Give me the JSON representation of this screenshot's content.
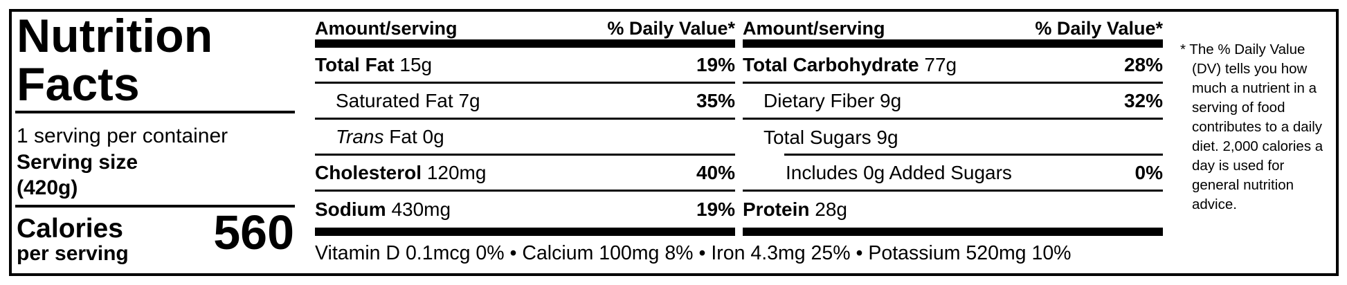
{
  "colors": {
    "ink": "#000000",
    "background": "#ffffff"
  },
  "label": {
    "title_line1": "Nutrition",
    "title_line2": "Facts",
    "servings_per_container": "1 serving per container",
    "serving_size_label": "Serving size",
    "serving_size_value": "(420g)",
    "calories_label": "Calories",
    "calories_sublabel": "per serving",
    "calories_value": "560"
  },
  "columns": [
    {
      "amount_header": "Amount/serving",
      "dv_header": "% Daily Value*",
      "rows": [
        {
          "name": "Total Fat",
          "amount": "15g",
          "dv": "19%"
        },
        {
          "name": "Saturated Fat",
          "amount": "7g",
          "dv": "35%"
        },
        {
          "name_italic": "Trans",
          "name": "Fat",
          "amount": "0g",
          "dv": ""
        },
        {
          "name": "Cholesterol",
          "amount": "120mg",
          "dv": "40%"
        },
        {
          "name": "Sodium",
          "amount": "430mg",
          "dv": "19%"
        }
      ]
    },
    {
      "amount_header": "Amount/serving",
      "dv_header": "% Daily Value*",
      "rows": [
        {
          "name": "Total Carbohydrate",
          "amount": "77g",
          "dv": "28%"
        },
        {
          "name": "Dietary Fiber",
          "amount": "9g",
          "dv": "32%"
        },
        {
          "name": "Total Sugars",
          "amount": "9g",
          "dv": ""
        },
        {
          "name": "Includes",
          "amount": "0g",
          "name_suffix": "Added Sugars",
          "dv": "0%"
        },
        {
          "name": "Protein",
          "amount": "28g",
          "dv": ""
        }
      ]
    }
  ],
  "micronutrients": {
    "bullet": "•",
    "items": [
      {
        "name": "Vitamin D",
        "amount": "0.1mcg",
        "dv": "0%"
      },
      {
        "name": "Calcium",
        "amount": "100mg",
        "dv": "8%"
      },
      {
        "name": "Iron",
        "amount": "4.3mg",
        "dv": "25%"
      },
      {
        "name": "Potassium",
        "amount": "520mg",
        "dv": "10%"
      }
    ]
  },
  "footnote": "* The % Daily Value (DV) tells you how much a nutrient in a serving of food contributes to a daily diet. 2,000 calories a day is used for general nutrition advice."
}
